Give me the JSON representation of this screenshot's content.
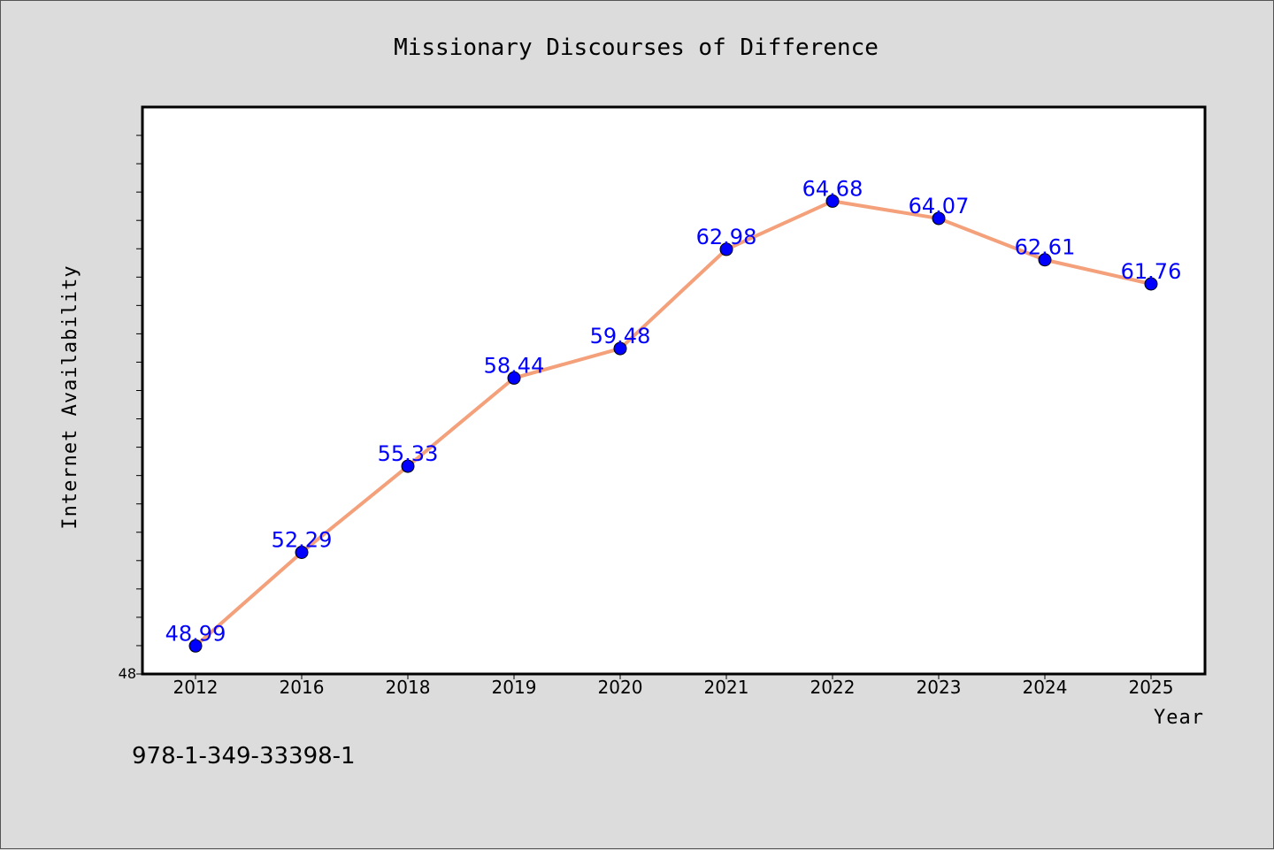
{
  "chart_data": {
    "type": "line",
    "title": "Missionary Discourses of Difference",
    "xlabel": "Year",
    "ylabel": "Internet Availability",
    "categories": [
      "2012",
      "2016",
      "2018",
      "2019",
      "2020",
      "2021",
      "2022",
      "2023",
      "2024",
      "2025"
    ],
    "series": [
      {
        "values": [
          48.99,
          52.29,
          55.33,
          58.44,
          59.48,
          62.98,
          64.68,
          64.07,
          62.61,
          61.76
        ],
        "data_labels": [
          "48.99",
          "52.29",
          "55.33",
          "58.44",
          "59.48",
          "62.98",
          "64.68",
          "64.07",
          "62.61",
          "61.76"
        ],
        "line_color": "#f4a07a",
        "marker_color": "#0000ff"
      }
    ],
    "ylim": [
      48,
      68
    ],
    "y_tick_label": "48",
    "grid": false,
    "legend": "none"
  },
  "footer": {
    "isbn": "978-1-349-33398-1"
  },
  "colors": {
    "background": "#dcdcdc",
    "plot_background": "#ffffff",
    "line": "#f4a07a",
    "marker": "#0000ff",
    "data_label": "#0000ff"
  }
}
